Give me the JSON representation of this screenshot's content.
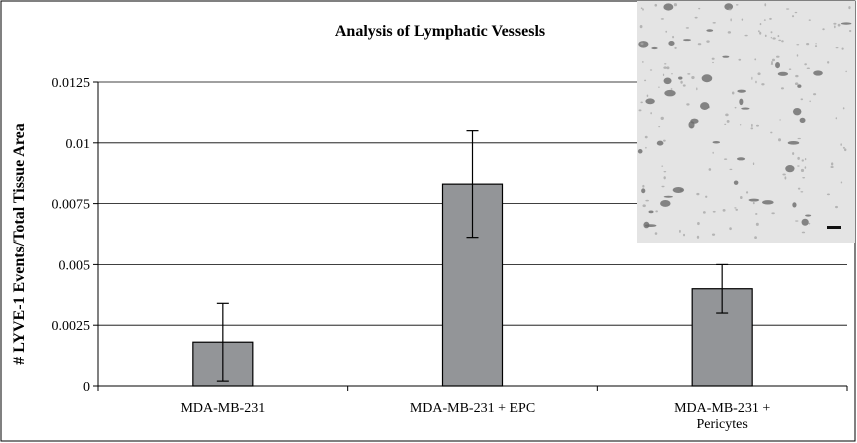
{
  "chart_data": {
    "type": "bar",
    "title": "Analysis of Lymphatic Vessesls",
    "y_label": "# LYVE-1 Events/Total Tissue Area",
    "categories": [
      "MDA-MB-231",
      "MDA-MB-231 + EPC",
      "MDA-MB-231 + Pericytes"
    ],
    "values": [
      0.0018,
      0.0083,
      0.004
    ],
    "errors": [
      0.0016,
      0.0022,
      0.001
    ],
    "color": "#939598",
    "ylim": [
      0,
      0.0125
    ],
    "yticks": [
      0,
      0.0025,
      0.005,
      0.0075,
      0.01,
      0.0125
    ],
    "grid": true
  }
}
